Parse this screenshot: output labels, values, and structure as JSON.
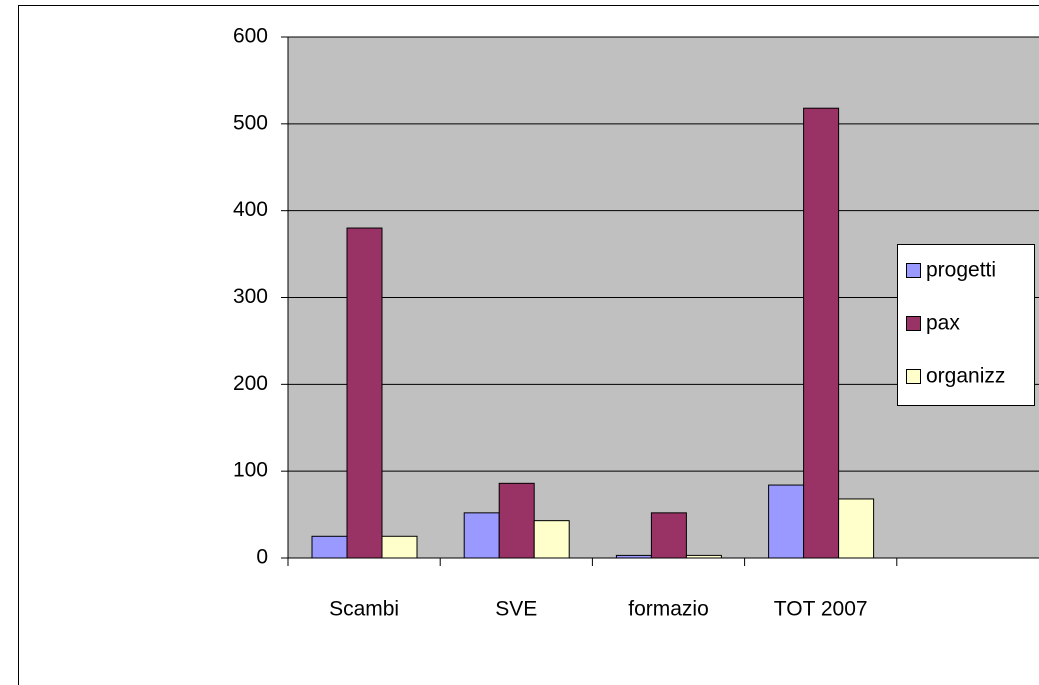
{
  "chart_data": {
    "type": "bar",
    "categories": [
      "Scambi",
      "SVE",
      "formazio",
      "TOT 2007",
      null
    ],
    "series": [
      {
        "name": "progetti",
        "color": "#9999ff",
        "values": [
          25,
          52,
          3,
          84,
          null
        ]
      },
      {
        "name": "pax",
        "color": "#993366",
        "values": [
          380,
          86,
          52,
          518,
          null
        ]
      },
      {
        "name": "organizz",
        "color": "#ffffcc",
        "values": [
          25,
          43,
          3,
          68,
          null
        ]
      }
    ],
    "ylim": [
      0,
      600
    ],
    "yticks": [
      0,
      100,
      200,
      300,
      400,
      500,
      600
    ],
    "grid": true,
    "legend": "right",
    "plot_background": "#c0c0c0"
  }
}
